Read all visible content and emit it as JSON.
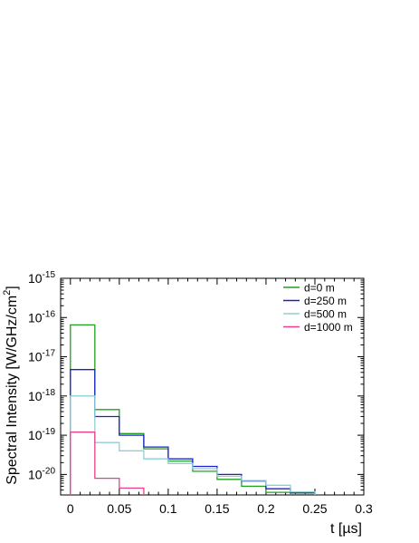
{
  "chart_data": {
    "type": "line",
    "step": true,
    "title": "",
    "xlabel": "t [µs]",
    "ylabel_main": "Spectral Intensity [W/GHz/cm",
    "ylabel_sup": "2",
    "ylabel_close": "]",
    "xlim": [
      -0.01,
      0.3
    ],
    "ylim": [
      3e-21,
      1e-15
    ],
    "ylog": true,
    "x_ticks": [
      0,
      0.05,
      0.1,
      0.15,
      0.2,
      0.25,
      0.3
    ],
    "x_tick_labels": [
      "0",
      "0.05",
      "0.1",
      "0.15",
      "0.2",
      "0.25",
      "0.3"
    ],
    "y_tick_exponents": [
      -20,
      -19,
      -18,
      -17,
      -16,
      -15
    ],
    "y_tick_base": "10",
    "grid": false,
    "legend": "top-right",
    "bin_edges": [
      0,
      0.025,
      0.05,
      0.075,
      0.1,
      0.125,
      0.15,
      0.175,
      0.2,
      0.225,
      0.25
    ],
    "series": [
      {
        "name": "d=0 m",
        "color": "#22a022",
        "values": [
          6.5e-17,
          4.5e-19,
          1.1e-19,
          4.5e-20,
          2.2e-20,
          1.2e-20,
          7.5e-21,
          5e-21,
          3.5e-21,
          3.1e-21
        ]
      },
      {
        "name": "d=250 m",
        "color": "#1f1fd0",
        "values": [
          4.7e-18,
          3e-19,
          1e-19,
          5e-20,
          2.5e-20,
          1.6e-20,
          1e-20,
          6.8e-21,
          4.3e-21,
          3.4e-21
        ]
      },
      {
        "name": "d=500 m",
        "color": "#8fcfd4",
        "values": [
          1e-18,
          6.5e-20,
          4e-20,
          2.5e-20,
          1.9e-20,
          1.4e-20,
          9e-21,
          7e-21,
          5.3e-21,
          3.6e-21
        ]
      },
      {
        "name": "d=1000 m",
        "color": "#e8408f",
        "values": [
          1.2e-19,
          8e-21,
          4.5e-21,
          null,
          null,
          null,
          null,
          null,
          null,
          null
        ]
      }
    ]
  }
}
